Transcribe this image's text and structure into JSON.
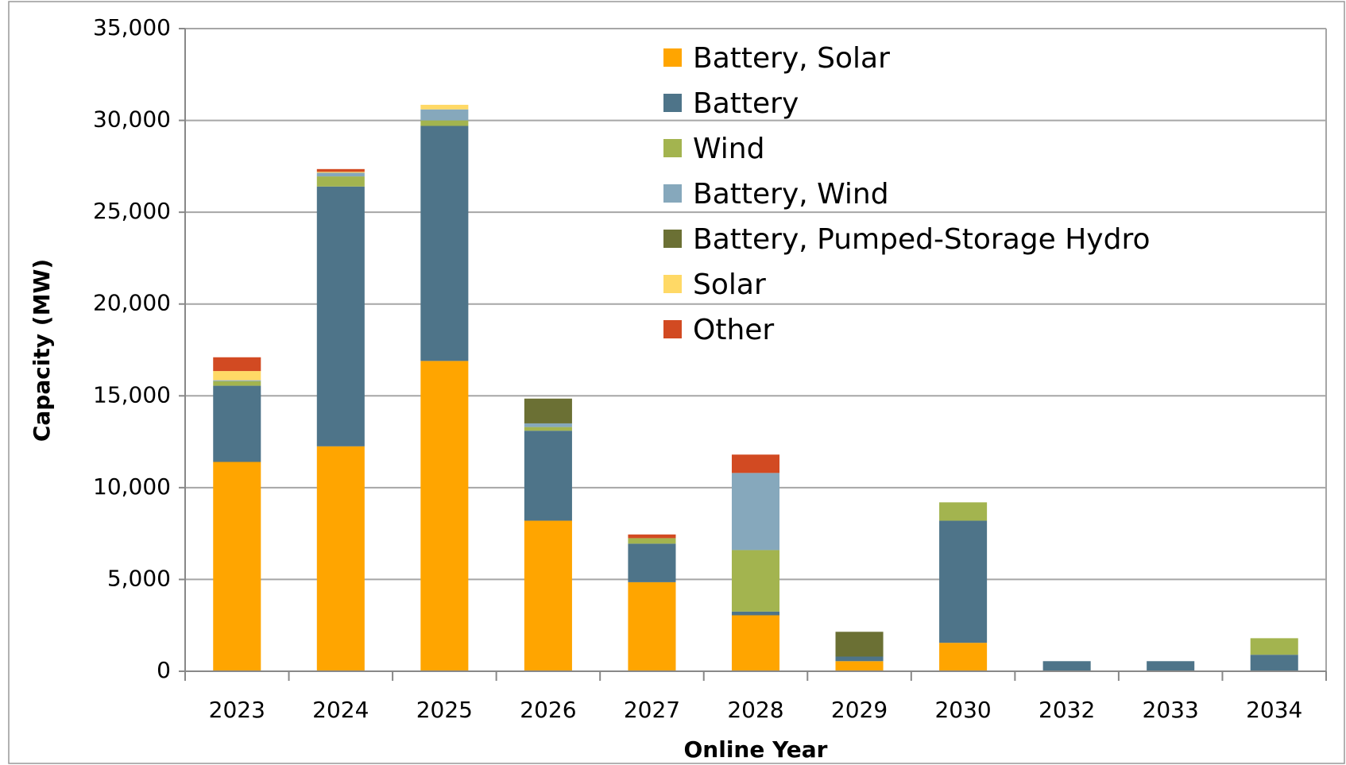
{
  "chart_data": {
    "type": "stacked_bar",
    "x_label": "Online Year",
    "y_label": "Capacity (MW)",
    "categories": [
      "2023",
      "2024",
      "2025",
      "2026",
      "2027",
      "2028",
      "2029",
      "2030",
      "2032",
      "2033",
      "2034"
    ],
    "series": [
      {
        "name": "Battery, Solar",
        "color": "#FFA500",
        "values": [
          11400,
          12250,
          16900,
          8200,
          4850,
          3050,
          550,
          1550,
          0,
          0,
          0
        ]
      },
      {
        "name": "Battery",
        "color": "#4E7489",
        "values": [
          4150,
          14150,
          12800,
          4900,
          2100,
          200,
          250,
          6650,
          550,
          550,
          900
        ]
      },
      {
        "name": "Wind",
        "color": "#A3B44F",
        "values": [
          250,
          550,
          300,
          200,
          300,
          3350,
          0,
          1000,
          0,
          0,
          900
        ]
      },
      {
        "name": "Battery, Wind",
        "color": "#86A8BC",
        "values": [
          50,
          200,
          600,
          200,
          0,
          4200,
          0,
          0,
          0,
          0,
          0
        ]
      },
      {
        "name": "Battery, Pumped-Storage Hydro",
        "color": "#6B7034",
        "values": [
          0,
          0,
          0,
          1350,
          0,
          0,
          1350,
          0,
          0,
          0,
          0
        ]
      },
      {
        "name": "Solar",
        "color": "#FFD966",
        "values": [
          500,
          50,
          250,
          0,
          0,
          0,
          0,
          0,
          0,
          0,
          0
        ]
      },
      {
        "name": "Other",
        "color": "#D24A22",
        "values": [
          750,
          150,
          0,
          0,
          200,
          1000,
          0,
          0,
          0,
          0,
          0
        ]
      }
    ],
    "ylim": [
      0,
      35000
    ],
    "yticks": [
      0,
      {
        "value": 5000,
        "label": "5,000"
      },
      {
        "value": 10000,
        "label": "10,000"
      },
      {
        "value": 15000,
        "label": "15,000"
      },
      {
        "value": 20000,
        "label": "20,000"
      },
      {
        "value": 25000,
        "label": "25,000"
      },
      {
        "value": 30000,
        "label": "30,000"
      },
      {
        "value": 35000,
        "label": "35,000"
      }
    ],
    "grid": true,
    "legend": "top"
  }
}
